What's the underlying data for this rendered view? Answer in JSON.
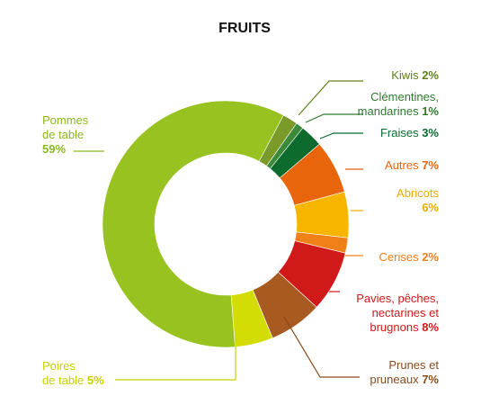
{
  "chart_data": {
    "type": "pie",
    "title": "FRUITS",
    "slices": [
      {
        "name": "Kiwis",
        "value": 2,
        "pct_label": "2%",
        "color": "#7a9a2a"
      },
      {
        "name": "Clémentines, mandarines",
        "name_lines": [
          "Clémentines,",
          "mandarines"
        ],
        "value": 1,
        "pct_label": "1%",
        "color": "#3a8a3a"
      },
      {
        "name": "Fraises",
        "value": 3,
        "pct_label": "3%",
        "color": "#0e6b2e"
      },
      {
        "name": "Autres",
        "value": 7,
        "pct_label": "7%",
        "color": "#e8650c"
      },
      {
        "name": "Abricots",
        "value": 6,
        "pct_label": "6%",
        "color": "#f7b500"
      },
      {
        "name": "Cerises",
        "value": 2,
        "pct_label": "2%",
        "color": "#f08018"
      },
      {
        "name": "Pavies, pêches, nectarines et brugnons",
        "name_lines": [
          "Pavies, pêches,",
          "nectarines et",
          "brugnons"
        ],
        "value": 8,
        "pct_label": "8%",
        "color": "#d01a1a"
      },
      {
        "name": "Prunes et pruneaux",
        "name_lines": [
          "Prunes et",
          "pruneaux"
        ],
        "value": 7,
        "pct_label": "7%",
        "color": "#a85a20"
      },
      {
        "name": "Poires de table",
        "name_lines": [
          "Poires",
          "de table"
        ],
        "value": 5,
        "pct_label": "5%",
        "color": "#d4dc06"
      },
      {
        "name": "Pommes de table",
        "name_lines": [
          "Pommes",
          "de table"
        ],
        "value": 59,
        "pct_label": "59%",
        "color": "#97c21f"
      }
    ],
    "legend_placement": "callout labels around the ring"
  },
  "label_colors": {
    "Kiwis": "#5f7f1f",
    "Clémentines, mandarines": "#2e7a2e",
    "Fraises": "#0e6b2e",
    "Autres": "#e8650c",
    "Abricots": "#f0aa00",
    "Cerises": "#f08018",
    "Pavies, pêches, nectarines et brugnons": "#d01a1a",
    "Prunes et pruneaux": "#8a4a1a",
    "Poires de table": "#c9d000",
    "Pommes de table": "#8cb81e"
  }
}
